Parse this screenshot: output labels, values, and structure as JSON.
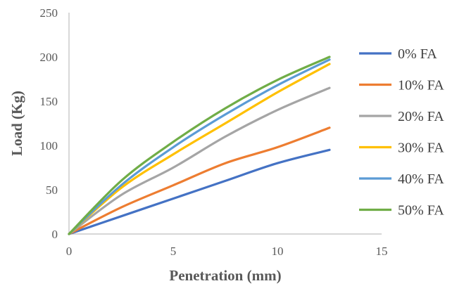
{
  "chart_data": {
    "type": "line",
    "title": "",
    "xlabel": "Penetration (mm)",
    "ylabel": "Load (Kg)",
    "xlim": [
      0,
      15
    ],
    "ylim": [
      0,
      250
    ],
    "xticks": [
      0,
      5,
      10,
      15
    ],
    "yticks": [
      0,
      50,
      100,
      150,
      200,
      250
    ],
    "grid": false,
    "legend_position": "right",
    "series": [
      {
        "name": "0% FA",
        "color": "#4472C4",
        "x": [
          0,
          2.5,
          5,
          7.5,
          10,
          12.5
        ],
        "y": [
          0,
          20,
          40,
          60,
          80,
          95
        ]
      },
      {
        "name": "10% FA",
        "color": "#ED7D31",
        "x": [
          0,
          2.5,
          5,
          7.5,
          10,
          12.5
        ],
        "y": [
          0,
          30,
          55,
          80,
          98,
          120
        ]
      },
      {
        "name": "20% FA",
        "color": "#A5A5A5",
        "x": [
          0,
          2.5,
          5,
          7.5,
          10,
          12.5
        ],
        "y": [
          0,
          44,
          75,
          110,
          140,
          165
        ]
      },
      {
        "name": "30% FA",
        "color": "#FFC000",
        "x": [
          0,
          2.5,
          5,
          7.5,
          10,
          12.5
        ],
        "y": [
          0,
          52,
          90,
          125,
          160,
          192
        ]
      },
      {
        "name": "40% FA",
        "color": "#5B9BD5",
        "x": [
          0,
          2.5,
          5,
          7.5,
          10,
          12.5
        ],
        "y": [
          0,
          55,
          98,
          135,
          168,
          197
        ]
      },
      {
        "name": "50% FA",
        "color": "#70AD47",
        "x": [
          0,
          2.5,
          5,
          7.5,
          10,
          12.5
        ],
        "y": [
          0,
          60,
          104,
          142,
          174,
          200
        ]
      }
    ]
  }
}
